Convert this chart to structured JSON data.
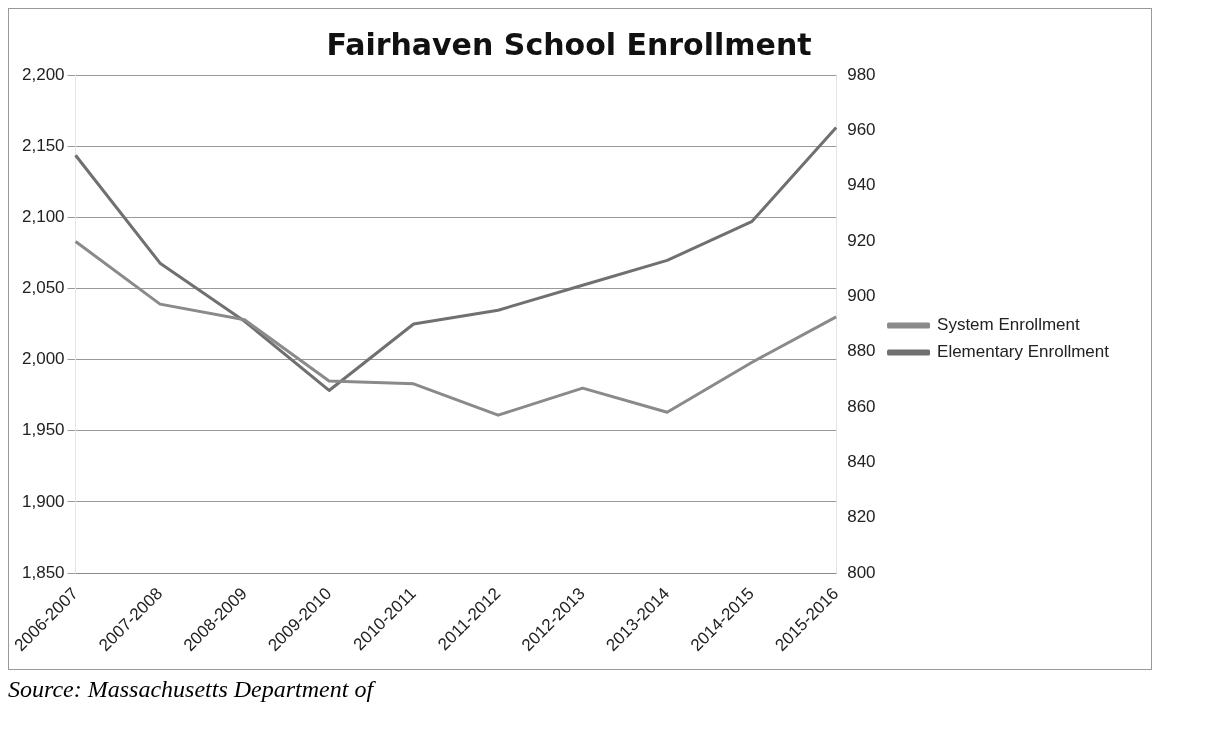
{
  "chart_data": {
    "type": "line",
    "title": "Fairhaven School Enrollment",
    "categories": [
      "2006-2007",
      "2007-2008",
      "2008-2009",
      "2009-2010",
      "2010-2011",
      "2011-2012",
      "2012-2013",
      "2013-2014",
      "2014-2015",
      "2015-2016"
    ],
    "series": [
      {
        "name": "System Enrollment",
        "color": "#8a8a8a",
        "values": [
          2083,
          2039,
          2028,
          1985,
          1983,
          1961,
          1980,
          1963,
          1998,
          2030
        ]
      },
      {
        "name": "Elementary Enrollment",
        "color": "#707070",
        "axis": "y2",
        "values": [
          951,
          912,
          891,
          866,
          890,
          895,
          904,
          913,
          927,
          961
        ]
      }
    ],
    "ylim": [
      1850,
      2200
    ],
    "yticks": [
      {
        "value": 1850,
        "label": "1,850"
      },
      {
        "value": 1900,
        "label": "1,900"
      },
      {
        "value": 1950,
        "label": "1,950"
      },
      {
        "value": 2000,
        "label": "2,000"
      },
      {
        "value": 2050,
        "label": "2,050"
      },
      {
        "value": 2100,
        "label": "2,100"
      },
      {
        "value": 2150,
        "label": "2,150"
      },
      {
        "value": 2200,
        "label": "2,200"
      }
    ],
    "y2lim": [
      800,
      980
    ],
    "y2ticks": [
      800,
      820,
      840,
      860,
      880,
      900,
      920,
      940,
      960,
      980
    ],
    "grid": "y",
    "legend": "right",
    "marker": "none",
    "line_style": "solid",
    "annotations": [
      "Source: Massachusetts Department of"
    ]
  }
}
